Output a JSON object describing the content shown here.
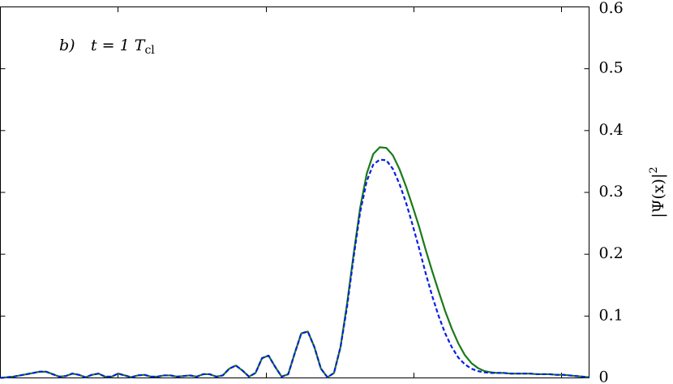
{
  "chart_data": {
    "type": "line",
    "annotation": {
      "label": "b)",
      "text": "t = 1 T",
      "subscript": "cl"
    },
    "y_axis_label": {
      "text": "|Ψ(x)|",
      "superscript": "2"
    },
    "y_axis_side": "right",
    "ylim": [
      0,
      0.6
    ],
    "yticks": [
      0,
      0.1,
      0.2,
      0.3,
      0.4,
      0.5,
      0.6
    ],
    "categories": [
      null,
      null,
      null,
      null,
      null,
      null,
      null,
      null,
      null,
      null,
      null,
      null,
      null,
      null,
      null,
      null,
      null,
      null,
      null,
      null,
      null,
      null,
      null,
      null,
      null,
      null,
      null,
      null,
      null,
      null,
      null,
      null,
      null,
      null,
      null,
      null,
      null,
      null,
      null,
      null,
      null,
      null,
      null,
      null,
      null,
      null,
      null,
      null,
      null,
      null,
      null,
      null,
      null,
      null,
      null,
      null,
      null,
      null,
      null,
      null,
      null,
      null,
      null,
      null,
      null,
      null,
      null,
      null,
      null,
      null,
      null,
      null,
      null,
      null,
      null,
      null,
      null,
      null,
      null,
      null,
      null,
      null,
      null,
      null,
      null,
      null,
      null,
      null,
      null,
      null,
      null
    ],
    "series": [
      {
        "color": "#1a7a1a",
        "dash": false,
        "values": [
          0.0,
          0.001,
          0.002,
          0.004,
          0.006,
          0.008,
          0.01,
          0.01,
          0.006,
          0.002,
          0.003,
          0.007,
          0.005,
          0.001,
          0.005,
          0.007,
          0.002,
          0.002,
          0.007,
          0.004,
          0.001,
          0.004,
          0.005,
          0.002,
          0.002,
          0.004,
          0.004,
          0.002,
          0.003,
          0.004,
          0.002,
          0.006,
          0.006,
          0.002,
          0.004,
          0.015,
          0.02,
          0.012,
          0.002,
          0.008,
          0.032,
          0.036,
          0.018,
          0.002,
          0.006,
          0.04,
          0.072,
          0.075,
          0.05,
          0.015,
          0.001,
          0.008,
          0.05,
          0.12,
          0.2,
          0.275,
          0.33,
          0.362,
          0.373,
          0.372,
          0.36,
          0.338,
          0.31,
          0.278,
          0.245,
          0.208,
          0.173,
          0.14,
          0.108,
          0.08,
          0.056,
          0.037,
          0.024,
          0.016,
          0.011,
          0.009,
          0.008,
          0.008,
          0.007,
          0.007,
          0.007,
          0.007,
          0.006,
          0.006,
          0.006,
          0.005,
          0.005,
          0.004,
          0.003,
          0.002,
          0.001
        ]
      },
      {
        "color": "#0a1ee0",
        "dash": true,
        "values": [
          0.0,
          0.001,
          0.002,
          0.004,
          0.006,
          0.008,
          0.01,
          0.01,
          0.006,
          0.002,
          0.003,
          0.007,
          0.005,
          0.001,
          0.005,
          0.007,
          0.002,
          0.002,
          0.007,
          0.004,
          0.001,
          0.004,
          0.005,
          0.002,
          0.002,
          0.004,
          0.004,
          0.002,
          0.003,
          0.004,
          0.002,
          0.006,
          0.006,
          0.002,
          0.004,
          0.015,
          0.02,
          0.012,
          0.002,
          0.008,
          0.032,
          0.036,
          0.018,
          0.002,
          0.006,
          0.04,
          0.072,
          0.075,
          0.05,
          0.015,
          0.001,
          0.008,
          0.05,
          0.115,
          0.195,
          0.268,
          0.318,
          0.345,
          0.353,
          0.352,
          0.338,
          0.314,
          0.284,
          0.248,
          0.21,
          0.17,
          0.133,
          0.1,
          0.072,
          0.05,
          0.033,
          0.022,
          0.015,
          0.011,
          0.009,
          0.008,
          0.008,
          0.008,
          0.007,
          0.007,
          0.007,
          0.007,
          0.006,
          0.006,
          0.006,
          0.005,
          0.005,
          0.004,
          0.003,
          0.002,
          0.001
        ]
      }
    ]
  }
}
